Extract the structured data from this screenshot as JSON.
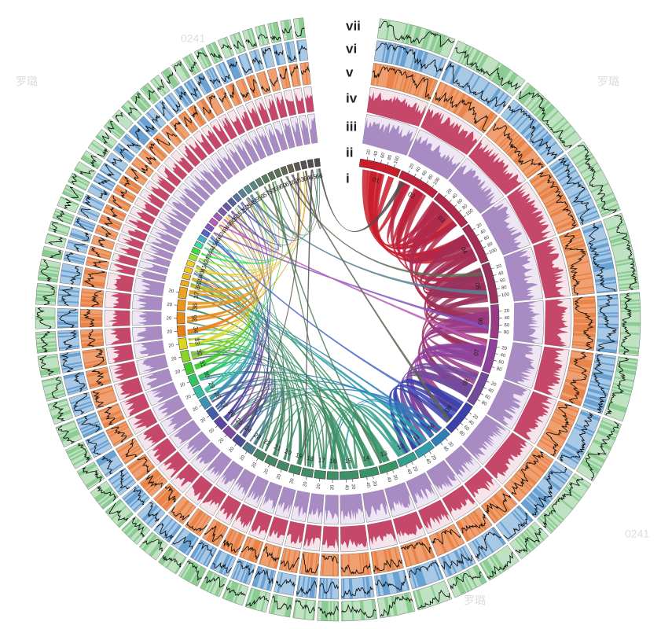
{
  "track_labels": [
    "i",
    "ii",
    "iii",
    "iv",
    "v",
    "vi",
    "vii"
  ],
  "chromosomes": [
    {
      "label": "01",
      "ticks": [
        "20",
        "40",
        "60",
        "80",
        "100"
      ]
    },
    {
      "label": "02",
      "ticks": [
        "20",
        "40",
        "60",
        "80",
        "100"
      ]
    },
    {
      "label": "03",
      "ticks": [
        "20",
        "40",
        "60",
        "80",
        "100"
      ]
    },
    {
      "label": "04",
      "ticks": [
        "20",
        "40",
        "60",
        "80",
        "100"
      ]
    },
    {
      "label": "05",
      "ticks": [
        "20",
        "40",
        "60",
        "80",
        "100"
      ]
    },
    {
      "label": "06",
      "ticks": [
        "20",
        "40",
        "60",
        "80"
      ]
    },
    {
      "label": "07",
      "ticks": [
        "20",
        "40",
        "60",
        "80"
      ]
    },
    {
      "label": "08",
      "ticks": [
        "20",
        "40",
        "60",
        "80"
      ]
    },
    {
      "label": "09",
      "ticks": [
        "20",
        "40",
        "60",
        "80"
      ]
    },
    {
      "label": "10",
      "ticks": [
        "20",
        "40"
      ]
    },
    {
      "label": "11",
      "ticks": [
        "20",
        "40"
      ]
    },
    {
      "label": "12",
      "ticks": [
        "20",
        "40"
      ]
    },
    {
      "label": "13",
      "ticks": [
        "20",
        "40"
      ]
    },
    {
      "label": "14",
      "ticks": [
        "20",
        "40"
      ]
    },
    {
      "label": "15",
      "ticks": [
        "20",
        "40"
      ]
    },
    {
      "label": "16",
      "ticks": [
        "20"
      ]
    },
    {
      "label": "17",
      "ticks": [
        "20"
      ]
    },
    {
      "label": "18",
      "ticks": [
        "20"
      ]
    },
    {
      "label": "19",
      "ticks": [
        "20"
      ]
    },
    {
      "label": "20",
      "ticks": [
        "20"
      ]
    },
    {
      "label": "21",
      "ticks": [
        "20"
      ]
    },
    {
      "label": "22",
      "ticks": [
        "20"
      ]
    },
    {
      "label": "23",
      "ticks": [
        "20"
      ]
    },
    {
      "label": "24",
      "ticks": [
        "20"
      ]
    },
    {
      "label": "25",
      "ticks": [
        "20"
      ]
    },
    {
      "label": "26",
      "ticks": [
        "20"
      ]
    },
    {
      "label": "27",
      "ticks": [
        "20"
      ]
    },
    {
      "label": "28",
      "ticks": [
        "20"
      ]
    },
    {
      "label": "29",
      "ticks": [
        "20"
      ]
    },
    {
      "label": "30",
      "ticks": [
        "20"
      ]
    },
    {
      "label": "31",
      "ticks": [
        "20"
      ]
    },
    {
      "label": "32",
      "ticks": [
        "20"
      ]
    },
    {
      "label": "33",
      "ticks": [
        "20"
      ]
    },
    {
      "label": "34",
      "ticks": [
        "20"
      ]
    },
    {
      "label": "35",
      "ticks": [
        "20"
      ]
    },
    {
      "label": "36",
      "ticks": [
        "20"
      ]
    },
    {
      "label": "37",
      "ticks": [
        "20"
      ]
    },
    {
      "label": "38",
      "ticks": []
    },
    {
      "label": "39",
      "ticks": []
    },
    {
      "label": "40",
      "ticks": []
    },
    {
      "label": "41",
      "ticks": []
    },
    {
      "label": "42",
      "ticks": []
    },
    {
      "label": "43",
      "ticks": []
    },
    {
      "label": "44",
      "ticks": []
    },
    {
      "label": "45",
      "ticks": []
    },
    {
      "label": "46",
      "ticks": []
    },
    {
      "label": "47",
      "ticks": []
    },
    {
      "label": "48",
      "ticks": []
    },
    {
      "label": "49",
      "ticks": []
    },
    {
      "label": "50",
      "ticks": []
    },
    {
      "label": "51",
      "ticks": []
    },
    {
      "label": "52",
      "ticks": []
    },
    {
      "label": "53",
      "ticks": []
    },
    {
      "label": "54",
      "ticks": []
    },
    {
      "label": "55",
      "ticks": []
    },
    {
      "label": "56",
      "ticks": []
    },
    {
      "label": "57",
      "ticks": []
    },
    {
      "label": "58",
      "ticks": []
    },
    {
      "label": "59",
      "ticks": []
    },
    {
      "label": "60",
      "ticks": []
    },
    {
      "label": "61",
      "ticks": []
    },
    {
      "label": "62",
      "ticks": []
    },
    {
      "label": "63",
      "ticks": []
    },
    {
      "label": "64",
      "ticks": []
    },
    {
      "label": "65",
      "ticks": []
    },
    {
      "label": "66",
      "ticks": []
    }
  ],
  "watermarks": [
    "0241",
    "罗璐",
    "罗璐",
    "0241",
    "罗璐"
  ]
}
